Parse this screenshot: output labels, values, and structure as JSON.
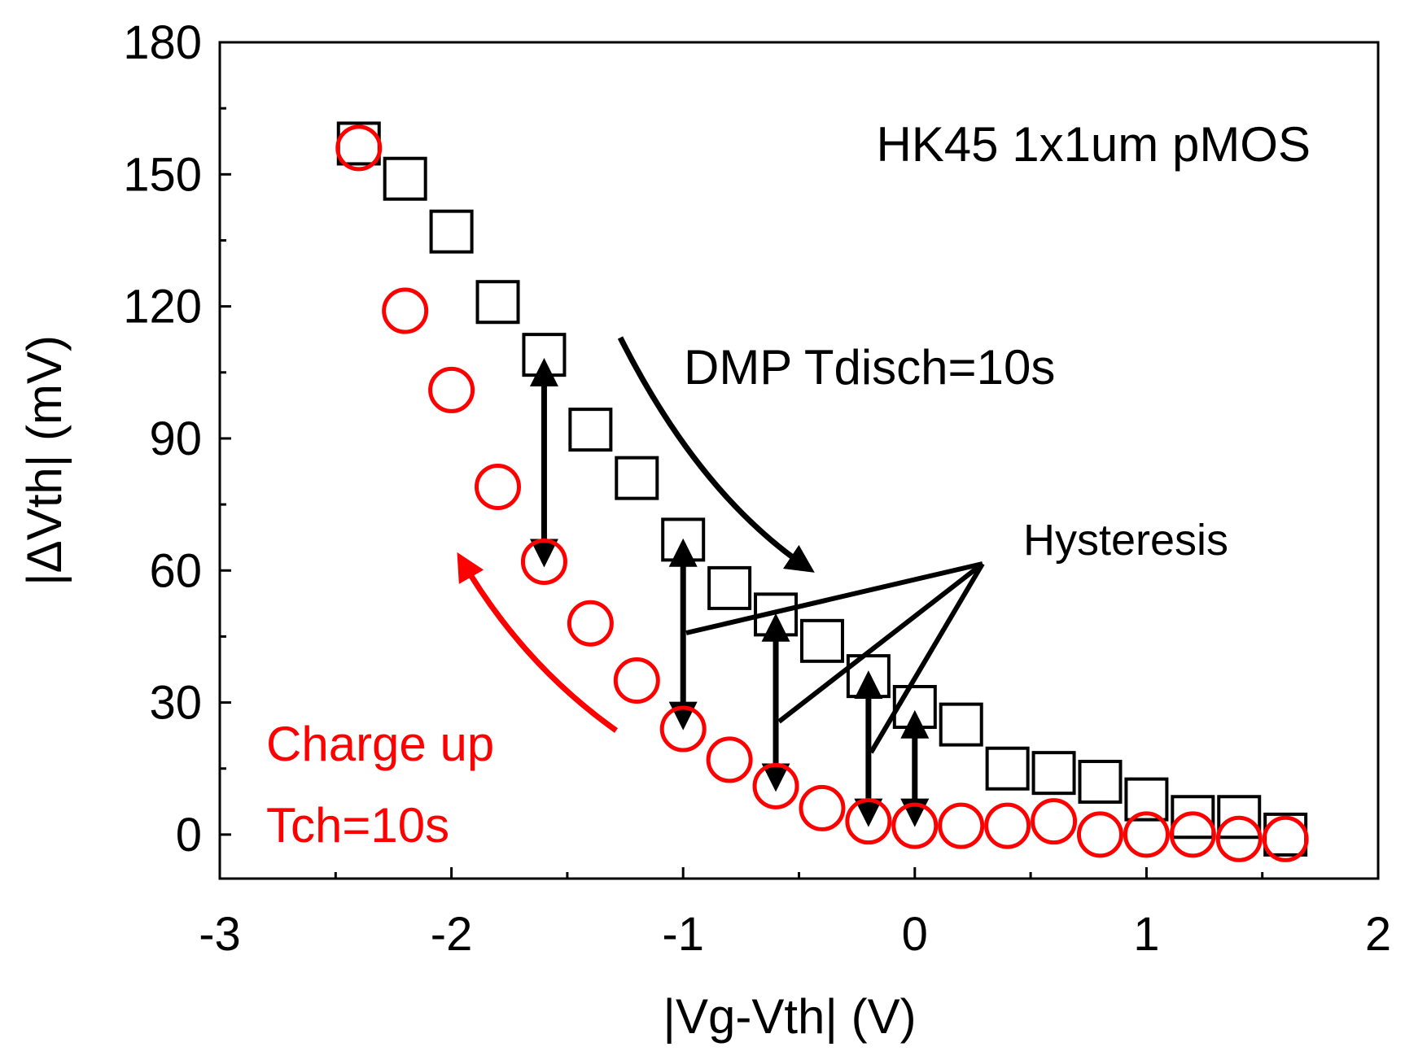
{
  "chart_data": {
    "type": "scatter",
    "xlabel": "|Vg-Vth| (V)",
    "ylabel": "|ΔVth| (mV)",
    "xlim": [
      -3,
      2
    ],
    "ylim": [
      -10,
      180
    ],
    "x_ticks": [
      -3,
      -2,
      -1,
      0,
      1,
      2
    ],
    "y_ticks": [
      0,
      30,
      60,
      90,
      120,
      150,
      180
    ],
    "grid": false,
    "series": [
      {
        "marker": "square",
        "color": "#000000",
        "x": [
          -2.4,
          -2.2,
          -2.0,
          -1.8,
          -1.6,
          -1.4,
          -1.2,
          -1.0,
          -0.8,
          -0.6,
          -0.4,
          -0.2,
          0.0,
          0.2,
          0.4,
          0.6,
          0.8,
          1.0,
          1.2,
          1.4,
          1.6
        ],
        "y": [
          157,
          149,
          137,
          121,
          109,
          92,
          81,
          67,
          56,
          50,
          44,
          36,
          29,
          25,
          15,
          14,
          12,
          8,
          4,
          4,
          0
        ]
      },
      {
        "marker": "circle",
        "color": "#ff0000",
        "x": [
          -2.4,
          -2.2,
          -2.0,
          -1.8,
          -1.6,
          -1.4,
          -1.2,
          -1.0,
          -0.8,
          -0.6,
          -0.4,
          -0.2,
          0.0,
          0.2,
          0.4,
          0.6,
          0.8,
          1.0,
          1.2,
          1.4,
          1.6
        ],
        "y": [
          156,
          119,
          101,
          79,
          62,
          48,
          35,
          24,
          17,
          11,
          6,
          3,
          2,
          2,
          2,
          3,
          0,
          0,
          0,
          -1,
          -1
        ]
      }
    ],
    "annotations": {
      "device": "HK45 1x1um pMOS",
      "dmp": "DMP Tdisch=10s",
      "hysteresis": "Hysteresis",
      "charge_line1": "Charge up",
      "charge_line2": "Tch=10s"
    },
    "hysteresis_arrows": [
      {
        "x": -1.6,
        "y_top": 107,
        "y_bottom": 62
      },
      {
        "x": -1.0,
        "y_top": 66,
        "y_bottom": 25
      },
      {
        "x": -0.6,
        "y_top": 49,
        "y_bottom": 11
      },
      {
        "x": -0.2,
        "y_top": 36,
        "y_bottom": 3
      },
      {
        "x": 0.0,
        "y_top": 27,
        "y_bottom": 3
      }
    ]
  }
}
